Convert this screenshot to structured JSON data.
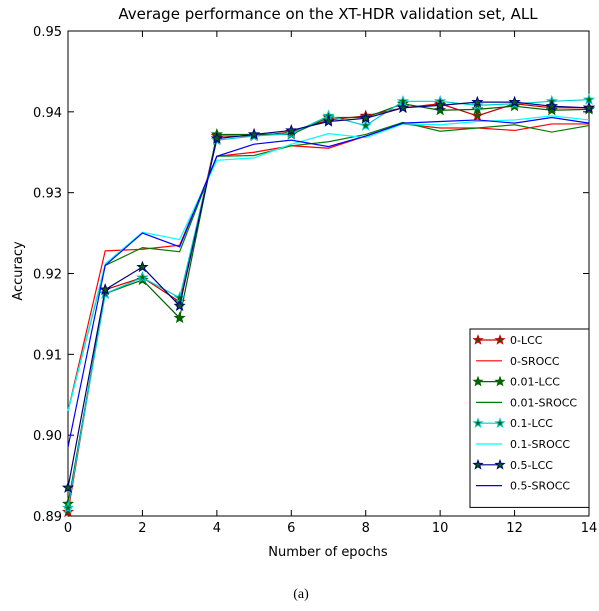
{
  "chart_data": {
    "type": "line",
    "title": "Average performance on the XT-HDR validation set, ALL",
    "xlabel": "Number of epochs",
    "ylabel": "Accuracy",
    "xlim": [
      0,
      14
    ],
    "ylim": [
      0.89,
      0.95
    ],
    "x_ticks": [
      "0",
      "2",
      "4",
      "6",
      "8",
      "10",
      "12",
      "14"
    ],
    "y_ticks": [
      "0.89",
      "0.90",
      "0.91",
      "0.92",
      "0.93",
      "0.94",
      "0.95"
    ],
    "x": [
      0,
      1,
      2,
      3,
      4,
      5,
      6,
      7,
      8,
      9,
      10,
      11,
      12,
      13,
      14
    ],
    "legend_position": "lower-right",
    "caption": "(a)",
    "series": [
      {
        "name": "0-LCC",
        "color": "#cc0000",
        "marker": "star",
        "values": [
          0.8905,
          0.918,
          0.9195,
          0.9165,
          0.937,
          0.937,
          0.9375,
          0.939,
          0.9395,
          0.9405,
          0.941,
          0.9395,
          0.941,
          0.9405,
          0.9405
        ]
      },
      {
        "name": "0-SROCC",
        "color": "#ff0000",
        "marker": "none",
        "values": [
          0.903,
          0.9228,
          0.923,
          0.9235,
          0.9345,
          0.935,
          0.9358,
          0.9355,
          0.937,
          0.9385,
          0.938,
          0.938,
          0.9377,
          0.9385,
          0.9385
        ]
      },
      {
        "name": "0.01-LCC",
        "color": "#006400",
        "marker": "star",
        "values": [
          0.8915,
          0.9175,
          0.9192,
          0.9145,
          0.9372,
          0.9372,
          0.9372,
          0.9393,
          0.9393,
          0.941,
          0.9402,
          0.9403,
          0.9407,
          0.9402,
          0.9403
        ]
      },
      {
        "name": "0.01-SROCC",
        "color": "#008000",
        "marker": "none",
        "values": [
          0.903,
          0.921,
          0.9232,
          0.9227,
          0.9345,
          0.9346,
          0.9358,
          0.9363,
          0.9372,
          0.9387,
          0.9376,
          0.938,
          0.9384,
          0.9375,
          0.9383
        ]
      },
      {
        "name": "0.1-LCC",
        "color": "#00cccc",
        "marker": "star",
        "values": [
          0.891,
          0.9175,
          0.9195,
          0.917,
          0.9365,
          0.937,
          0.9373,
          0.9395,
          0.9383,
          0.9413,
          0.9413,
          0.9408,
          0.941,
          0.9413,
          0.9415
        ]
      },
      {
        "name": "0.1-SROCC",
        "color": "#00ffff",
        "marker": "none",
        "values": [
          0.903,
          0.9212,
          0.9251,
          0.9242,
          0.934,
          0.9343,
          0.936,
          0.9373,
          0.9368,
          0.9385,
          0.9384,
          0.9388,
          0.939,
          0.9395,
          0.939
        ]
      },
      {
        "name": "0.5-LCC",
        "color": "#000080",
        "marker": "star",
        "values": [
          0.8935,
          0.918,
          0.9208,
          0.916,
          0.9367,
          0.9372,
          0.9377,
          0.9388,
          0.9392,
          0.9405,
          0.9408,
          0.9412,
          0.9412,
          0.9407,
          0.9405
        ]
      },
      {
        "name": "0.5-SROCC",
        "color": "#0000ff",
        "marker": "none",
        "values": [
          0.8985,
          0.921,
          0.925,
          0.9233,
          0.9345,
          0.936,
          0.9365,
          0.9357,
          0.937,
          0.9386,
          0.9388,
          0.939,
          0.9386,
          0.9393,
          0.9386
        ]
      }
    ]
  }
}
